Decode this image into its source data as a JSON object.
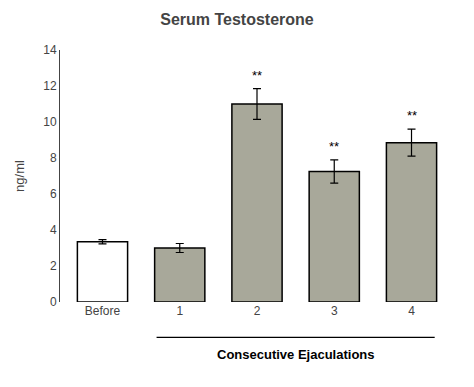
{
  "chart_data": {
    "type": "bar",
    "title": "Serum Testosterone",
    "ylabel": "ng/ml",
    "categories": [
      "Before",
      "1",
      "2",
      "3",
      "4"
    ],
    "values": [
      3.35,
      3.0,
      11.0,
      7.25,
      8.85
    ],
    "errors": [
      0.12,
      0.25,
      0.85,
      0.65,
      0.75
    ],
    "significance": [
      null,
      null,
      "**",
      "**",
      "**"
    ],
    "colors": [
      "#ffffff",
      "#a8a89a",
      "#a8a89a",
      "#a8a89a",
      "#a8a89a"
    ],
    "annotations": [
      {
        "text": "Consecutive Ejaculations",
        "categories": [
          "1",
          "4"
        ]
      }
    ],
    "ylim": [
      0,
      14
    ],
    "yticks": [
      0,
      2,
      4,
      6,
      8,
      10,
      12,
      14
    ],
    "grid": false
  }
}
